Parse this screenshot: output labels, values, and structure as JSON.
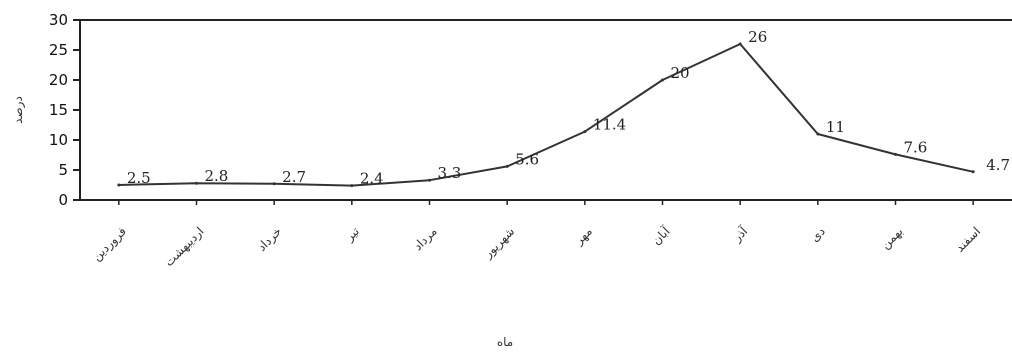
{
  "chart_data": {
    "type": "line",
    "categories": [
      "فروردین",
      "اردیبهشت",
      "خرداد",
      "تیر",
      "مرداد",
      "شهریور",
      "مهر",
      "آبان",
      "آذر",
      "دی",
      "بهمن",
      "اسفند"
    ],
    "values": [
      2.5,
      2.8,
      2.7,
      2.4,
      3.3,
      5.6,
      11.4,
      20,
      26,
      11,
      7.6,
      4.7
    ],
    "data_labels": [
      "2.5",
      "2.8",
      "2.7",
      "2.4",
      "3.3",
      "5.6",
      "11.4",
      "20",
      "26",
      "11",
      "7.6",
      "4.7"
    ],
    "title": "",
    "xlabel": "ماه",
    "ylabel": "درصد",
    "ylim": [
      0,
      30
    ],
    "yticks": [
      0,
      5,
      10,
      15,
      20,
      25,
      30
    ],
    "grid": false,
    "legend": "none",
    "line_color": "#333333"
  }
}
